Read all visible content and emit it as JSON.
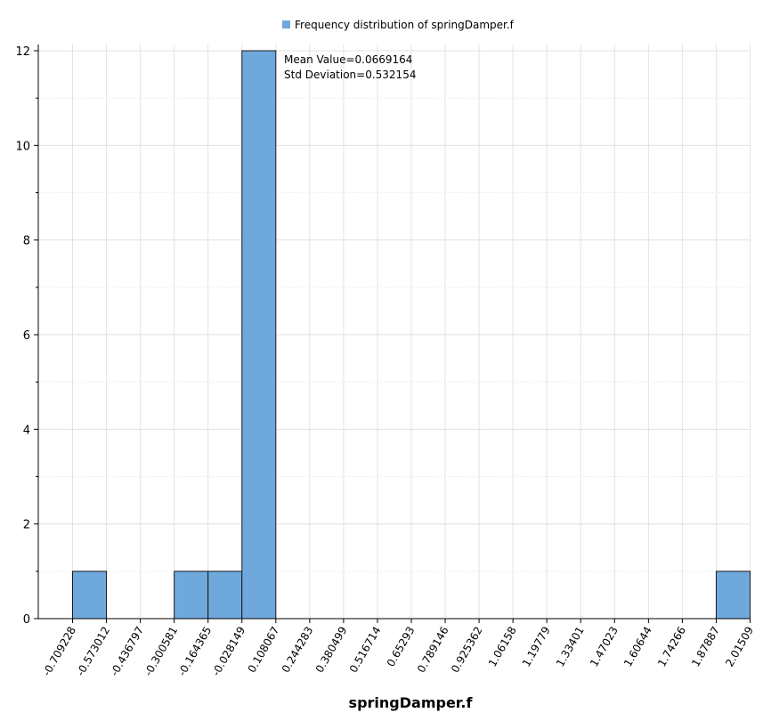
{
  "chart_data": {
    "type": "bar",
    "title": "",
    "xlabel": "springDamper.f",
    "ylabel": "",
    "bin_edges": [
      -0.709228,
      -0.573012,
      -0.436797,
      -0.300581,
      -0.164365,
      -0.028149,
      0.108067,
      0.244283,
      0.380499,
      0.516714,
      0.65293,
      0.789146,
      0.925362,
      1.06158,
      1.19779,
      1.33401,
      1.47023,
      1.60644,
      1.74266,
      1.87887,
      2.01509
    ],
    "x_tick_labels": [
      "-0.709228",
      "-0.573012",
      "-0.436797",
      "-0.300581",
      "-0.164365",
      "-0.028149",
      "0.108067",
      "0.244283",
      "0.380499",
      "0.516714",
      "0.65293",
      "0.789146",
      "0.925362",
      "1.06158",
      "1.19779",
      "1.33401",
      "1.47023",
      "1.60644",
      "1.74266",
      "1.87887",
      "2.01509"
    ],
    "series": [
      {
        "name": "Frequency distribution of springDamper.f",
        "values": [
          1,
          0,
          0,
          1,
          1,
          12,
          0,
          0,
          0,
          0,
          0,
          0,
          0,
          0,
          0,
          0,
          0,
          0,
          0,
          1
        ],
        "color": "#6fa8dc"
      }
    ],
    "ylim": [
      0,
      12
    ],
    "y_ticks": [
      0,
      2,
      4,
      6,
      8,
      10,
      12
    ],
    "grid": true,
    "legend": "top-center",
    "annotations": [
      "Mean Value=0.0669164",
      "Std Deviation=0.532154"
    ]
  }
}
